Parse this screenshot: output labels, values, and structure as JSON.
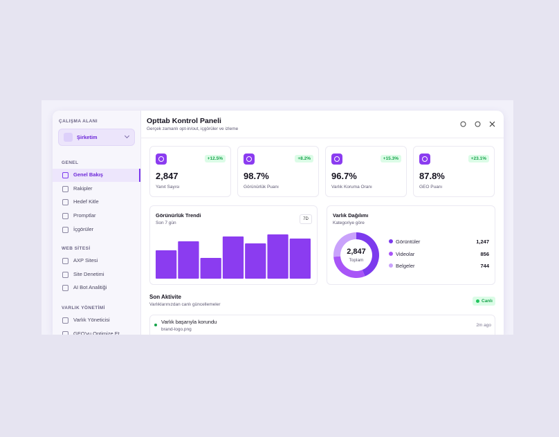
{
  "sidebar": {
    "workspace_label": "ÇALIŞMA ALANI",
    "workspace": "Şirketim",
    "sections": [
      {
        "title": "GENEL",
        "items": [
          "Genel Bakış",
          "Rakipler",
          "Hedef Kitle",
          "Promptlar",
          "İçgörüler"
        ]
      },
      {
        "title": "WEB SİTESİ",
        "items": [
          "AXP Sitesi",
          "Site Denetimi",
          "AI Bot Analitiği"
        ]
      },
      {
        "title": "VARLIK YÖNETİMİ",
        "items": [
          "Varlık Yöneticisi",
          "GEO'yu Optimize Et"
        ]
      }
    ]
  },
  "header": {
    "title": "Opttab Kontrol Paneli",
    "subtitle": "Gerçek zamanlı opt-in/out, içgörüler ve izleme"
  },
  "stats": [
    {
      "value": "2,847",
      "label": "Yanıt Sayısı",
      "change": "+12.5%"
    },
    {
      "value": "98.7%",
      "label": "Görünürlük Puanı",
      "change": "+8.2%"
    },
    {
      "value": "96.7%",
      "label": "Varlık Koruma Oranı",
      "change": "+15.3%"
    },
    {
      "value": "87.8%",
      "label": "GEO Puanı",
      "change": "+23.1%"
    }
  ],
  "chart_data": [
    {
      "type": "bar",
      "title": "Görünürlük Trendi",
      "subtitle": "Son 7 gün",
      "range_button": "7D",
      "values": [
        41,
        54,
        30,
        61,
        51,
        64,
        58
      ],
      "color": "#8b3cf0"
    },
    {
      "type": "pie",
      "title": "Varlık Dağılımı",
      "subtitle": "Kategoriye göre",
      "total": {
        "value": 2847,
        "label": "2,847"
      },
      "total_caption": "Toplam",
      "categories": [
        "Görüntüler",
        "Videolar",
        "Belgeler"
      ],
      "values": [
        1247,
        856,
        744
      ],
      "value_labels": [
        "1,247",
        "856",
        "744"
      ],
      "colors": [
        "#7c3aed",
        "#a855f7",
        "#c9a2fb"
      ]
    }
  ],
  "activity": {
    "title": "Son Aktivite",
    "subtitle": "Varlıklarınızdan canlı güncellemeler",
    "badge": "Canlı",
    "items": [
      {
        "title": "Varlık başarıyla korundu",
        "file": "brand-logo.png",
        "time": "2m ago"
      }
    ]
  }
}
